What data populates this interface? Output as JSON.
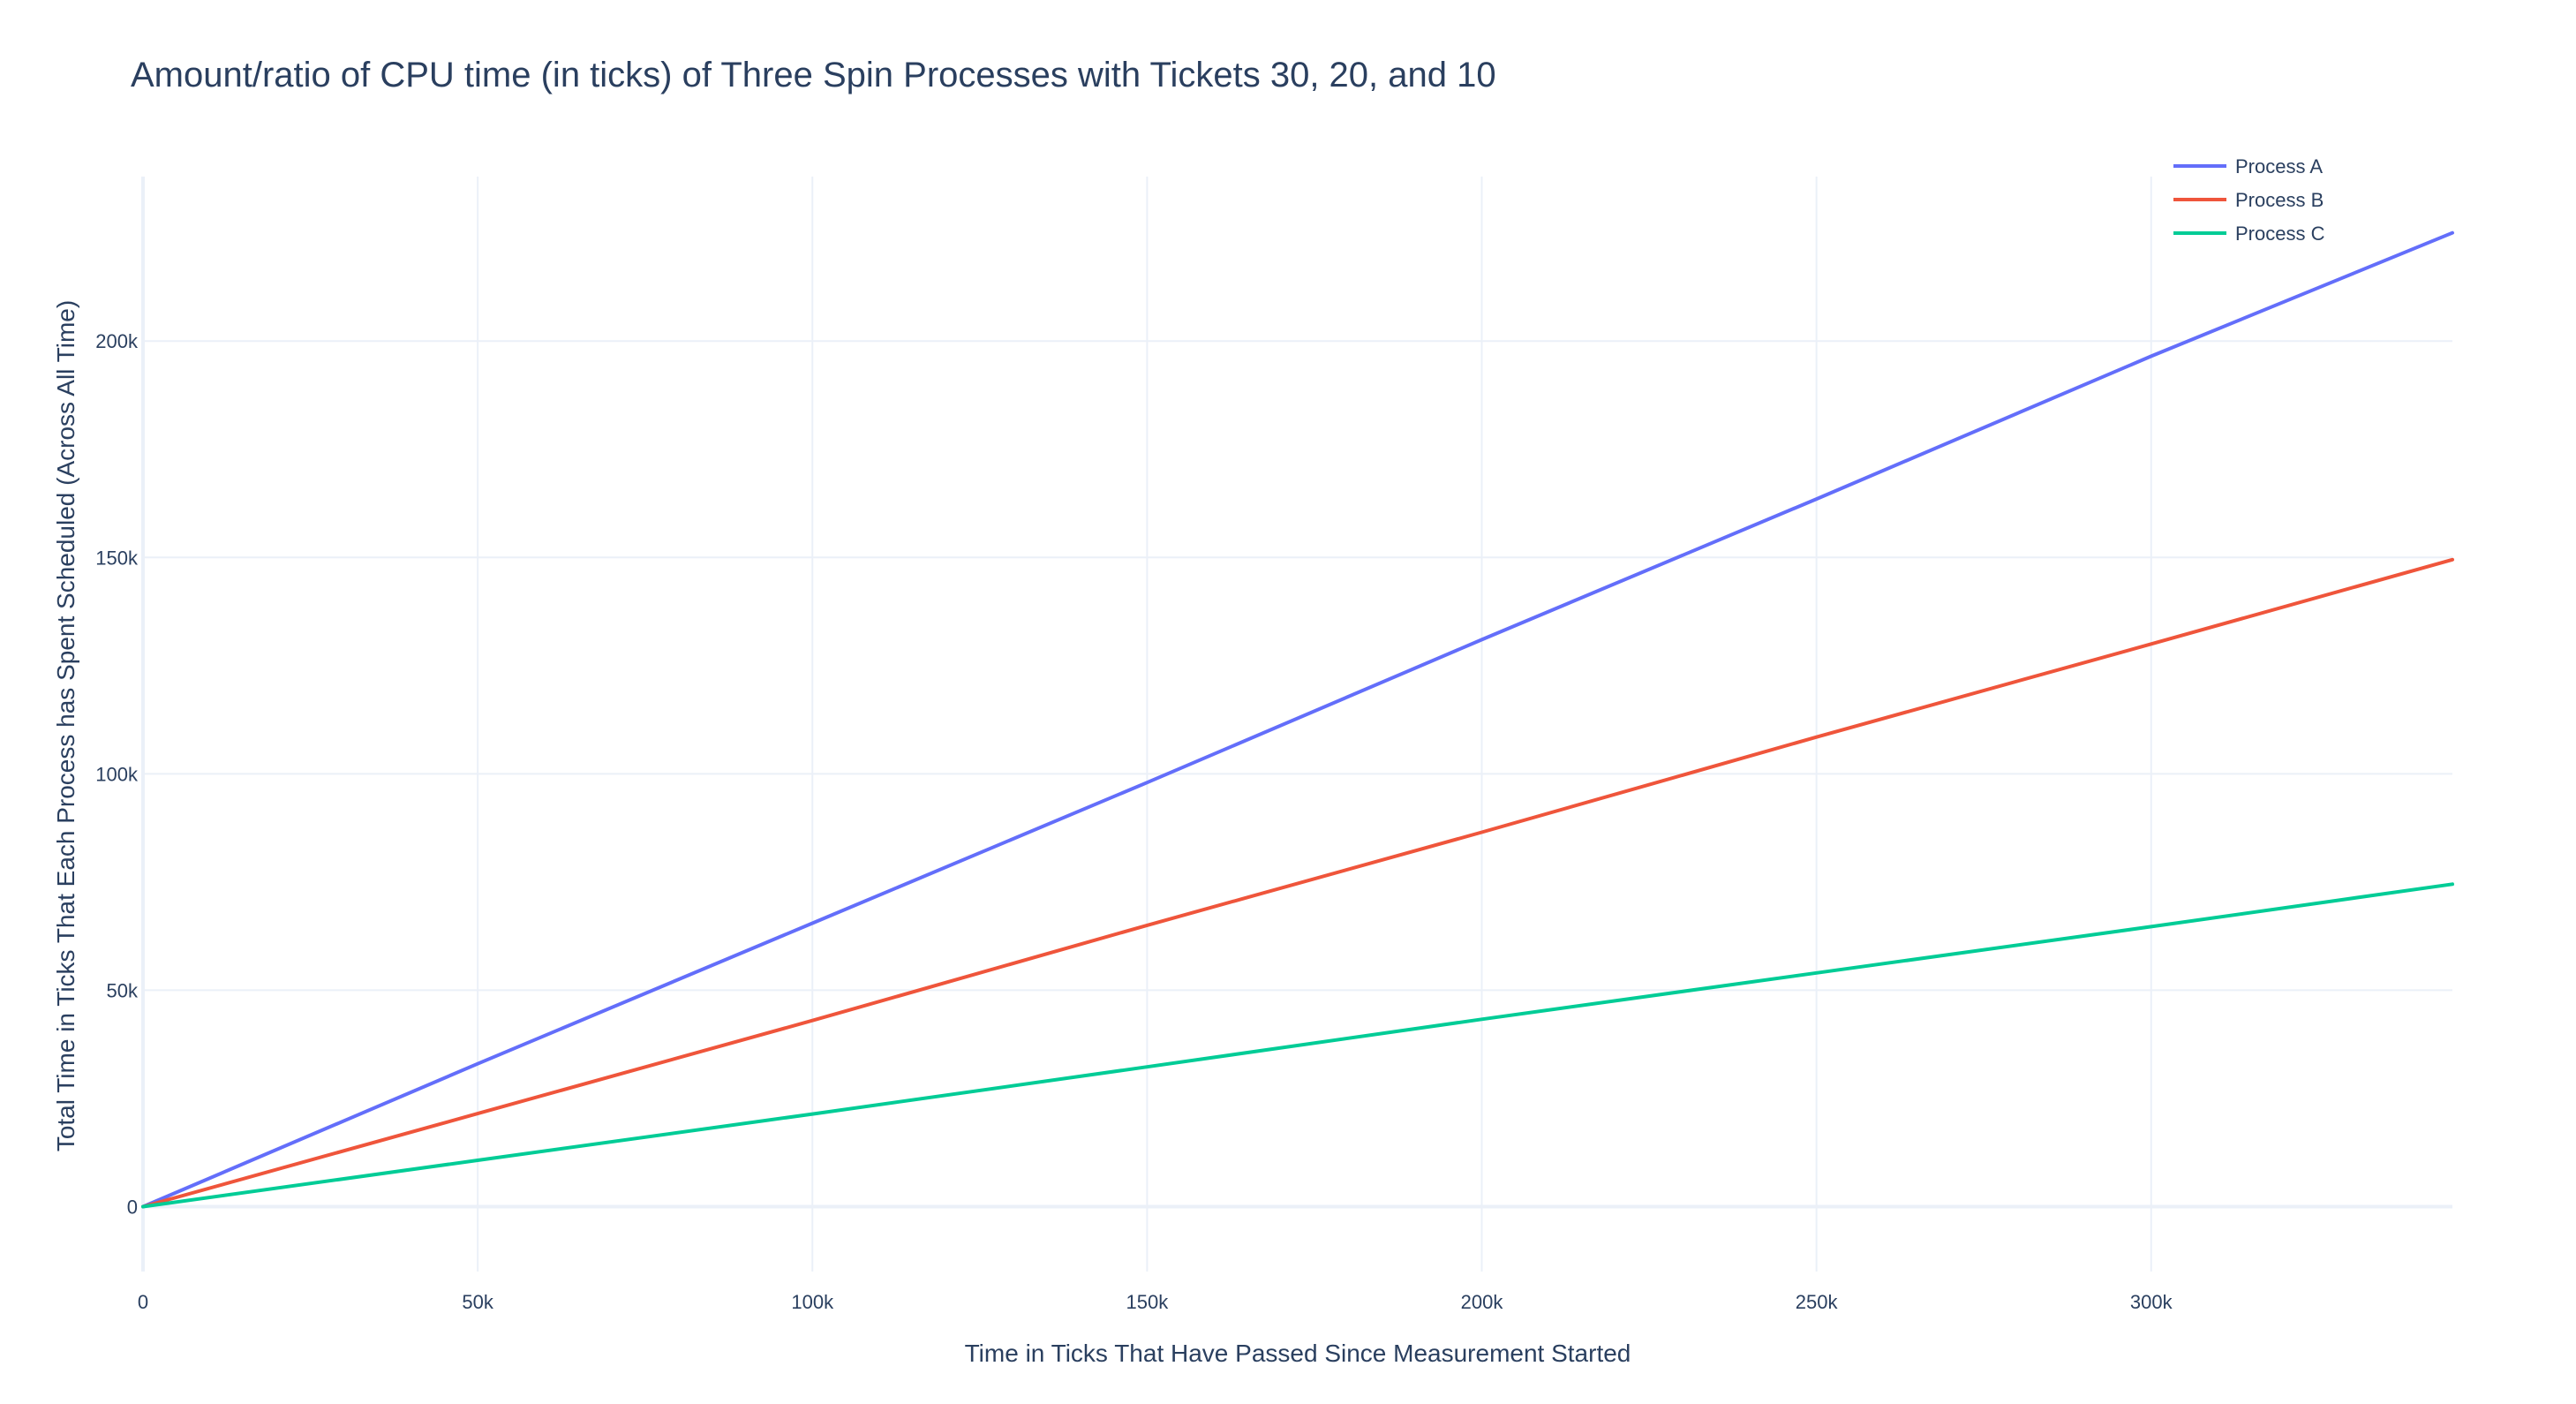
{
  "chart_data": {
    "type": "line",
    "title": "Amount/ratio of CPU time (in ticks) of Three Spin Processes with Tickets 30, 20, and 10",
    "xlabel": "Time in Ticks That Have Passed Since Measurement Started",
    "ylabel": "Total Time in Ticks That Each Process has Spent Scheduled (Across All Time)",
    "xlim": [
      0,
      345000
    ],
    "ylim": [
      -15000,
      238000
    ],
    "x_ticks": [
      0,
      50000,
      100000,
      150000,
      200000,
      250000,
      300000
    ],
    "x_tick_labels": [
      "0",
      "50k",
      "100k",
      "150k",
      "200k",
      "250k",
      "300k"
    ],
    "y_ticks": [
      0,
      50000,
      100000,
      150000,
      200000
    ],
    "y_tick_labels": [
      "0",
      "50k",
      "100k",
      "150k",
      "200k"
    ],
    "grid": true,
    "legend_position": "top-right",
    "series": [
      {
        "name": "Process A",
        "color": "#636efa",
        "x": [
          0,
          50000,
          100000,
          150000,
          200000,
          250000,
          300000,
          345000
        ],
        "y": [
          0,
          33000,
          65500,
          98000,
          131000,
          163500,
          196500,
          225000
        ]
      },
      {
        "name": "Process B",
        "color": "#ef553b",
        "x": [
          0,
          50000,
          100000,
          150000,
          200000,
          250000,
          300000,
          345000
        ],
        "y": [
          0,
          21500,
          43000,
          65000,
          86500,
          108500,
          130000,
          149500
        ]
      },
      {
        "name": "Process C",
        "color": "#00cc96",
        "x": [
          0,
          50000,
          100000,
          150000,
          200000,
          250000,
          300000,
          345000
        ],
        "y": [
          0,
          10700,
          21400,
          32300,
          43300,
          54000,
          64700,
          74500
        ]
      }
    ]
  }
}
